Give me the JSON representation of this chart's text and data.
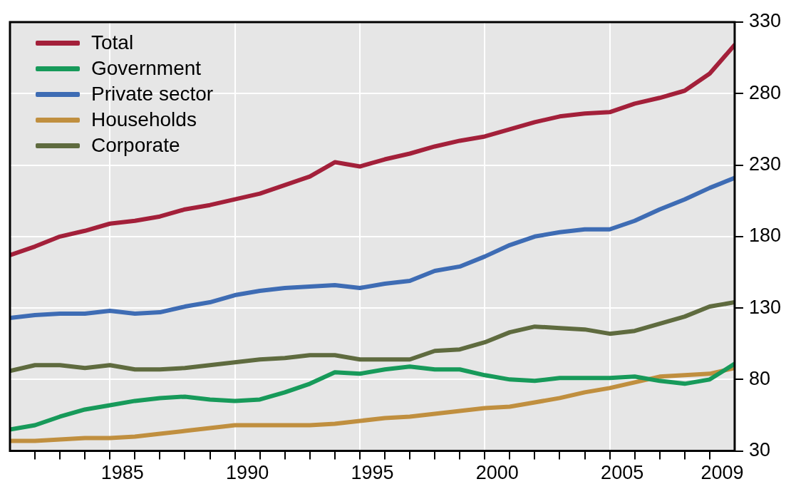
{
  "chart_data": {
    "type": "line",
    "x": [
      1981,
      1982,
      1983,
      1984,
      1985,
      1986,
      1987,
      1988,
      1989,
      1990,
      1991,
      1992,
      1993,
      1994,
      1995,
      1996,
      1997,
      1998,
      1999,
      2000,
      2001,
      2002,
      2003,
      2004,
      2005,
      2006,
      2007,
      2008,
      2009,
      2010
    ],
    "series": [
      {
        "name": "Total",
        "color": "#a3203a",
        "values": [
          167,
          173,
          180,
          184,
          189,
          191,
          194,
          199,
          202,
          206,
          210,
          216,
          222,
          232,
          229,
          234,
          238,
          243,
          247,
          250,
          255,
          260,
          264,
          266,
          267,
          273,
          277,
          282,
          294,
          314
        ]
      },
      {
        "name": "Government",
        "color": "#179a5a",
        "values": [
          45,
          48,
          54,
          59,
          62,
          65,
          67,
          68,
          66,
          65,
          66,
          71,
          77,
          85,
          84,
          87,
          89,
          87,
          87,
          83,
          80,
          79,
          81,
          81,
          81,
          82,
          79,
          77,
          80,
          91
        ]
      },
      {
        "name": "Private sector",
        "color": "#3e6cb4",
        "values": [
          123,
          125,
          126,
          126,
          128,
          126,
          127,
          131,
          134,
          139,
          142,
          144,
          145,
          146,
          144,
          147,
          149,
          156,
          159,
          166,
          174,
          180,
          183,
          185,
          185,
          191,
          199,
          206,
          214,
          221
        ]
      },
      {
        "name": "Households",
        "color": "#c08f3f",
        "values": [
          37,
          37,
          38,
          39,
          39,
          40,
          42,
          44,
          46,
          48,
          48,
          48,
          48,
          49,
          51,
          53,
          54,
          56,
          58,
          60,
          61,
          64,
          67,
          71,
          74,
          78,
          82,
          83,
          84,
          88
        ]
      },
      {
        "name": "Corporate",
        "color": "#5f6b3f",
        "values": [
          86,
          90,
          90,
          88,
          90,
          87,
          87,
          88,
          90,
          92,
          94,
          95,
          97,
          97,
          94,
          94,
          94,
          100,
          101,
          106,
          113,
          117,
          116,
          115,
          112,
          114,
          119,
          124,
          131,
          134
        ]
      }
    ],
    "xlim": [
      1981,
      2010
    ],
    "xticks": [
      {
        "value": 1982,
        "label": null
      },
      {
        "value": 1983,
        "label": null
      },
      {
        "value": 1984,
        "label": null
      },
      {
        "value": 1985,
        "label": null
      },
      {
        "value": 1985.5,
        "label": "1985"
      },
      {
        "value": 1986,
        "label": null
      },
      {
        "value": 1987,
        "label": null
      },
      {
        "value": 1988,
        "label": null
      },
      {
        "value": 1989,
        "label": null
      },
      {
        "value": 1990,
        "label": null
      },
      {
        "value": 1990.5,
        "label": "1990"
      },
      {
        "value": 1991,
        "label": null
      },
      {
        "value": 1992,
        "label": null
      },
      {
        "value": 1993,
        "label": null
      },
      {
        "value": 1994,
        "label": null
      },
      {
        "value": 1995,
        "label": null
      },
      {
        "value": 1995.5,
        "label": "1995"
      },
      {
        "value": 1996,
        "label": null
      },
      {
        "value": 1997,
        "label": null
      },
      {
        "value": 1998,
        "label": null
      },
      {
        "value": 1999,
        "label": null
      },
      {
        "value": 2000,
        "label": null
      },
      {
        "value": 2000.5,
        "label": "2000"
      },
      {
        "value": 2001,
        "label": null
      },
      {
        "value": 2002,
        "label": null
      },
      {
        "value": 2003,
        "label": null
      },
      {
        "value": 2004,
        "label": null
      },
      {
        "value": 2005,
        "label": null
      },
      {
        "value": 2005.5,
        "label": "2005"
      },
      {
        "value": 2006,
        "label": null
      },
      {
        "value": 2007,
        "label": null
      },
      {
        "value": 2008,
        "label": null
      },
      {
        "value": 2009,
        "label": null
      },
      {
        "value": 2009.5,
        "label": "2009"
      }
    ],
    "ylim": [
      30,
      330
    ],
    "yticks": [
      30,
      80,
      130,
      180,
      230,
      280,
      330
    ],
    "grid": true,
    "legend": "top left",
    "marker": "none",
    "line_style": "solid"
  }
}
